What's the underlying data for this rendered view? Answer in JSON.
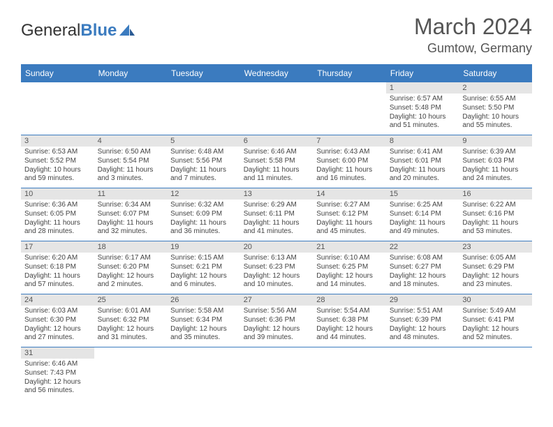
{
  "logo": {
    "part1": "General",
    "part2": "Blue"
  },
  "title": "March 2024",
  "location": "Gumtow, Germany",
  "colors": {
    "header_bg": "#3b7bbf",
    "header_text": "#ffffff",
    "border": "#3b7bbf",
    "daynum_bg": "#e5e5e5",
    "text": "#444444"
  },
  "weekdays": [
    "Sunday",
    "Monday",
    "Tuesday",
    "Wednesday",
    "Thursday",
    "Friday",
    "Saturday"
  ],
  "weeks": [
    [
      null,
      null,
      null,
      null,
      null,
      {
        "n": "1",
        "sr": "Sunrise: 6:57 AM",
        "ss": "Sunset: 5:48 PM",
        "d1": "Daylight: 10 hours",
        "d2": "and 51 minutes."
      },
      {
        "n": "2",
        "sr": "Sunrise: 6:55 AM",
        "ss": "Sunset: 5:50 PM",
        "d1": "Daylight: 10 hours",
        "d2": "and 55 minutes."
      }
    ],
    [
      {
        "n": "3",
        "sr": "Sunrise: 6:53 AM",
        "ss": "Sunset: 5:52 PM",
        "d1": "Daylight: 10 hours",
        "d2": "and 59 minutes."
      },
      {
        "n": "4",
        "sr": "Sunrise: 6:50 AM",
        "ss": "Sunset: 5:54 PM",
        "d1": "Daylight: 11 hours",
        "d2": "and 3 minutes."
      },
      {
        "n": "5",
        "sr": "Sunrise: 6:48 AM",
        "ss": "Sunset: 5:56 PM",
        "d1": "Daylight: 11 hours",
        "d2": "and 7 minutes."
      },
      {
        "n": "6",
        "sr": "Sunrise: 6:46 AM",
        "ss": "Sunset: 5:58 PM",
        "d1": "Daylight: 11 hours",
        "d2": "and 11 minutes."
      },
      {
        "n": "7",
        "sr": "Sunrise: 6:43 AM",
        "ss": "Sunset: 6:00 PM",
        "d1": "Daylight: 11 hours",
        "d2": "and 16 minutes."
      },
      {
        "n": "8",
        "sr": "Sunrise: 6:41 AM",
        "ss": "Sunset: 6:01 PM",
        "d1": "Daylight: 11 hours",
        "d2": "and 20 minutes."
      },
      {
        "n": "9",
        "sr": "Sunrise: 6:39 AM",
        "ss": "Sunset: 6:03 PM",
        "d1": "Daylight: 11 hours",
        "d2": "and 24 minutes."
      }
    ],
    [
      {
        "n": "10",
        "sr": "Sunrise: 6:36 AM",
        "ss": "Sunset: 6:05 PM",
        "d1": "Daylight: 11 hours",
        "d2": "and 28 minutes."
      },
      {
        "n": "11",
        "sr": "Sunrise: 6:34 AM",
        "ss": "Sunset: 6:07 PM",
        "d1": "Daylight: 11 hours",
        "d2": "and 32 minutes."
      },
      {
        "n": "12",
        "sr": "Sunrise: 6:32 AM",
        "ss": "Sunset: 6:09 PM",
        "d1": "Daylight: 11 hours",
        "d2": "and 36 minutes."
      },
      {
        "n": "13",
        "sr": "Sunrise: 6:29 AM",
        "ss": "Sunset: 6:11 PM",
        "d1": "Daylight: 11 hours",
        "d2": "and 41 minutes."
      },
      {
        "n": "14",
        "sr": "Sunrise: 6:27 AM",
        "ss": "Sunset: 6:12 PM",
        "d1": "Daylight: 11 hours",
        "d2": "and 45 minutes."
      },
      {
        "n": "15",
        "sr": "Sunrise: 6:25 AM",
        "ss": "Sunset: 6:14 PM",
        "d1": "Daylight: 11 hours",
        "d2": "and 49 minutes."
      },
      {
        "n": "16",
        "sr": "Sunrise: 6:22 AM",
        "ss": "Sunset: 6:16 PM",
        "d1": "Daylight: 11 hours",
        "d2": "and 53 minutes."
      }
    ],
    [
      {
        "n": "17",
        "sr": "Sunrise: 6:20 AM",
        "ss": "Sunset: 6:18 PM",
        "d1": "Daylight: 11 hours",
        "d2": "and 57 minutes."
      },
      {
        "n": "18",
        "sr": "Sunrise: 6:17 AM",
        "ss": "Sunset: 6:20 PM",
        "d1": "Daylight: 12 hours",
        "d2": "and 2 minutes."
      },
      {
        "n": "19",
        "sr": "Sunrise: 6:15 AM",
        "ss": "Sunset: 6:21 PM",
        "d1": "Daylight: 12 hours",
        "d2": "and 6 minutes."
      },
      {
        "n": "20",
        "sr": "Sunrise: 6:13 AM",
        "ss": "Sunset: 6:23 PM",
        "d1": "Daylight: 12 hours",
        "d2": "and 10 minutes."
      },
      {
        "n": "21",
        "sr": "Sunrise: 6:10 AM",
        "ss": "Sunset: 6:25 PM",
        "d1": "Daylight: 12 hours",
        "d2": "and 14 minutes."
      },
      {
        "n": "22",
        "sr": "Sunrise: 6:08 AM",
        "ss": "Sunset: 6:27 PM",
        "d1": "Daylight: 12 hours",
        "d2": "and 18 minutes."
      },
      {
        "n": "23",
        "sr": "Sunrise: 6:05 AM",
        "ss": "Sunset: 6:29 PM",
        "d1": "Daylight: 12 hours",
        "d2": "and 23 minutes."
      }
    ],
    [
      {
        "n": "24",
        "sr": "Sunrise: 6:03 AM",
        "ss": "Sunset: 6:30 PM",
        "d1": "Daylight: 12 hours",
        "d2": "and 27 minutes."
      },
      {
        "n": "25",
        "sr": "Sunrise: 6:01 AM",
        "ss": "Sunset: 6:32 PM",
        "d1": "Daylight: 12 hours",
        "d2": "and 31 minutes."
      },
      {
        "n": "26",
        "sr": "Sunrise: 5:58 AM",
        "ss": "Sunset: 6:34 PM",
        "d1": "Daylight: 12 hours",
        "d2": "and 35 minutes."
      },
      {
        "n": "27",
        "sr": "Sunrise: 5:56 AM",
        "ss": "Sunset: 6:36 PM",
        "d1": "Daylight: 12 hours",
        "d2": "and 39 minutes."
      },
      {
        "n": "28",
        "sr": "Sunrise: 5:54 AM",
        "ss": "Sunset: 6:38 PM",
        "d1": "Daylight: 12 hours",
        "d2": "and 44 minutes."
      },
      {
        "n": "29",
        "sr": "Sunrise: 5:51 AM",
        "ss": "Sunset: 6:39 PM",
        "d1": "Daylight: 12 hours",
        "d2": "and 48 minutes."
      },
      {
        "n": "30",
        "sr": "Sunrise: 5:49 AM",
        "ss": "Sunset: 6:41 PM",
        "d1": "Daylight: 12 hours",
        "d2": "and 52 minutes."
      }
    ],
    [
      {
        "n": "31",
        "sr": "Sunrise: 6:46 AM",
        "ss": "Sunset: 7:43 PM",
        "d1": "Daylight: 12 hours",
        "d2": "and 56 minutes."
      },
      null,
      null,
      null,
      null,
      null,
      null
    ]
  ]
}
